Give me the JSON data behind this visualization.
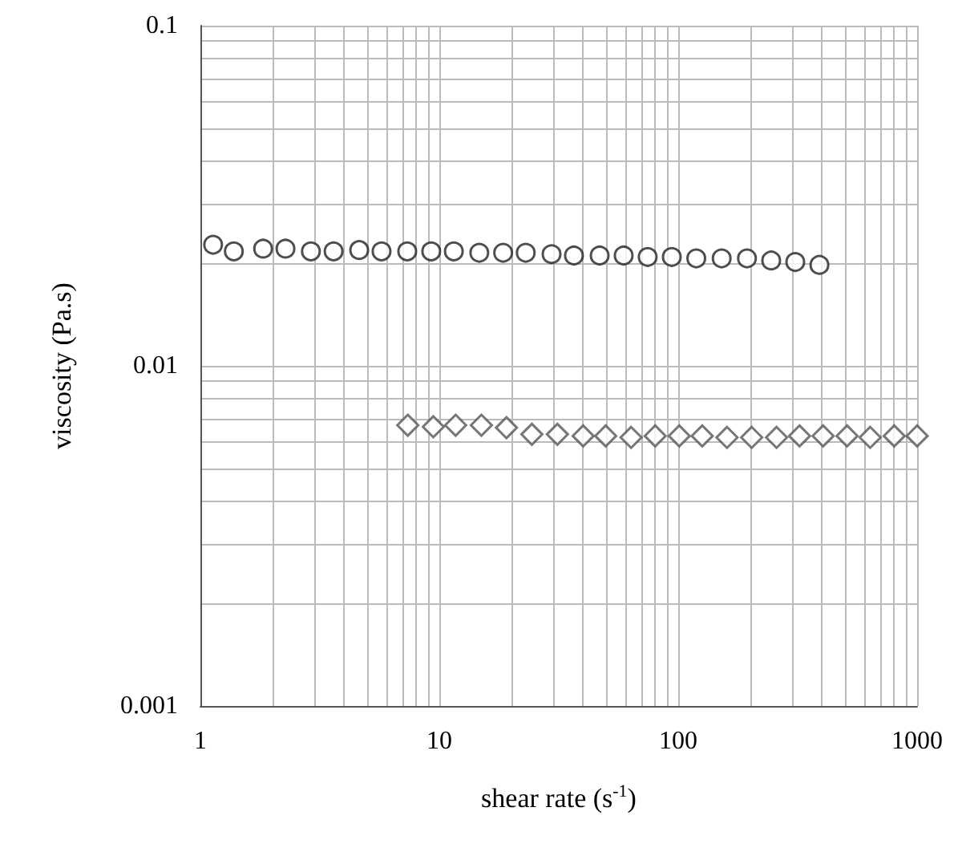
{
  "chart_data": {
    "type": "scatter",
    "xlabel": "shear rate (s$^{-1}$)",
    "ylabel": "viscosity (Pa.s)",
    "log": "xy",
    "grid": true,
    "xlim": [
      1,
      1000
    ],
    "ylim": [
      0.001,
      0.1
    ],
    "xticks": [
      1,
      {
        "value": 2,
        "label": null
      },
      {
        "value": 3,
        "label": null
      },
      {
        "value": 4,
        "label": null
      },
      {
        "value": 5,
        "label": null
      },
      {
        "value": 6,
        "label": null
      },
      {
        "value": 7,
        "label": null
      },
      {
        "value": 8,
        "label": null
      },
      {
        "value": 9,
        "label": null
      },
      10,
      {
        "value": 20,
        "label": null
      },
      {
        "value": 30,
        "label": null
      },
      {
        "value": 40,
        "label": null
      },
      {
        "value": 50,
        "label": null
      },
      {
        "value": 60,
        "label": null
      },
      {
        "value": 70,
        "label": null
      },
      {
        "value": 80,
        "label": null
      },
      {
        "value": 90,
        "label": null
      },
      100,
      {
        "value": 200,
        "label": null
      },
      {
        "value": 300,
        "label": null
      },
      {
        "value": 400,
        "label": null
      },
      {
        "value": 500,
        "label": null
      },
      {
        "value": 600,
        "label": null
      },
      {
        "value": 700,
        "label": null
      },
      {
        "value": 800,
        "label": null
      },
      {
        "value": 900,
        "label": null
      },
      1000
    ],
    "yticks": [
      0.001,
      {
        "value": 0.002,
        "label": null
      },
      {
        "value": 0.003,
        "label": null
      },
      {
        "value": 0.004,
        "label": null
      },
      {
        "value": 0.005,
        "label": null
      },
      {
        "value": 0.006,
        "label": null
      },
      {
        "value": 0.007,
        "label": null
      },
      {
        "value": 0.008,
        "label": null
      },
      {
        "value": 0.009,
        "label": null
      },
      0.01,
      {
        "value": 0.02,
        "label": null
      },
      {
        "value": 0.03,
        "label": null
      },
      {
        "value": 0.04,
        "label": null
      },
      {
        "value": 0.05,
        "label": null
      },
      {
        "value": 0.06,
        "label": null
      },
      {
        "value": 0.07,
        "label": null
      },
      {
        "value": 0.08,
        "label": null
      },
      {
        "value": 0.09,
        "label": null
      },
      0.1
    ],
    "series": [
      {
        "color": "#222222",
        "marker": "circle",
        "x": [
          1.13,
          1.38,
          1.83,
          2.27,
          2.9,
          3.61,
          4.62,
          5.73,
          7.34,
          9.25,
          11.5,
          14.7,
          18.5,
          23.0,
          29.5,
          36.6,
          46.9,
          59.1,
          74.5,
          94.0,
          119,
          152,
          194,
          245,
          309,
          390
        ],
        "values": [
          0.0227,
          0.0217,
          0.0221,
          0.0221,
          0.0217,
          0.0217,
          0.0219,
          0.0217,
          0.0217,
          0.0217,
          0.0217,
          0.0215,
          0.0215,
          0.0215,
          0.0213,
          0.0211,
          0.0211,
          0.0211,
          0.0209,
          0.0209,
          0.0207,
          0.0207,
          0.0207,
          0.0204,
          0.0202,
          0.0198
        ]
      },
      {
        "color": "#555555",
        "marker": "diamond",
        "x": [
          7.38,
          9.44,
          11.7,
          15.0,
          19.1,
          24.4,
          31.2,
          40.0,
          49.7,
          63.5,
          80.1,
          101,
          126,
          160,
          203,
          258,
          322,
          404,
          509,
          636,
          802,
          1000
        ],
        "values": [
          0.00669,
          0.00662,
          0.00669,
          0.00669,
          0.00658,
          0.00629,
          0.00629,
          0.00622,
          0.00622,
          0.00616,
          0.00622,
          0.00622,
          0.00622,
          0.00616,
          0.00616,
          0.00616,
          0.00622,
          0.00622,
          0.00622,
          0.00616,
          0.00622,
          0.00622
        ]
      }
    ]
  }
}
